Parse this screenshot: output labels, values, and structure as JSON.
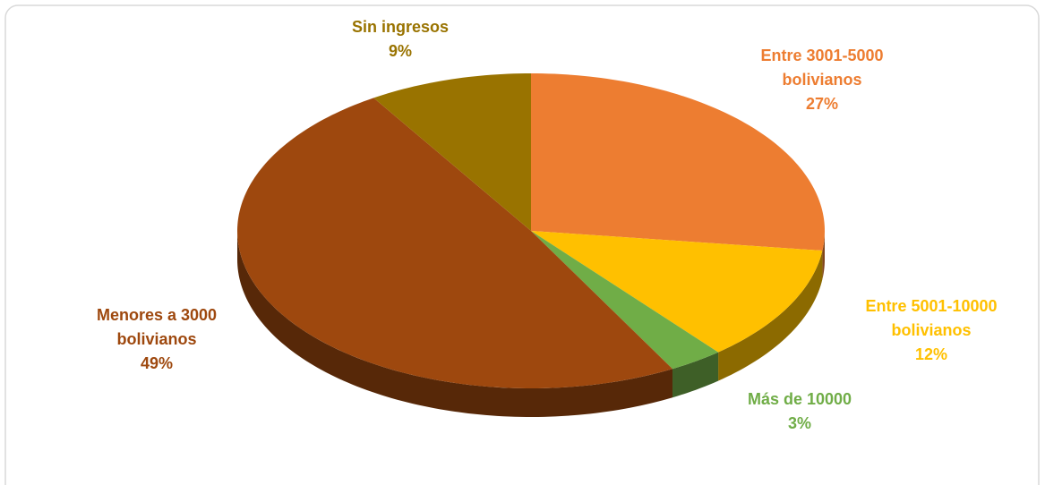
{
  "chart_data": {
    "type": "pie",
    "categories": [
      "Entre 3001-5000 bolivianos",
      "Entre 5001-10000 bolivianos",
      "Más de 10000",
      "Menores a 3000 bolivianos",
      "Sin ingresos"
    ],
    "values": [
      27,
      12,
      3,
      49,
      9
    ],
    "value_labels": [
      "27%",
      "12%",
      "3%",
      "49%",
      "9%"
    ],
    "colors": [
      "#ED7D31",
      "#FFC000",
      "#70AD47",
      "#9E480E",
      "#997300"
    ]
  }
}
